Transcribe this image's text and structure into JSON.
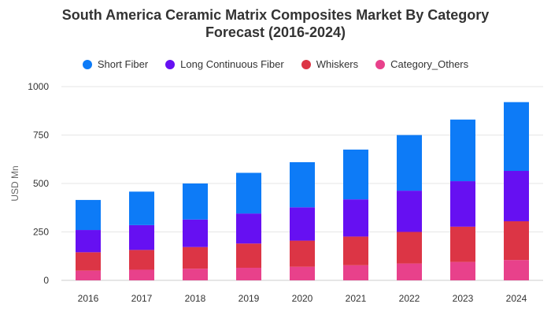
{
  "chart_data": {
    "type": "bar",
    "stacked": true,
    "title_line1": "South America Ceramic Matrix Composites Market By Category",
    "title_line2": "Forecast (2016-2024)",
    "xlabel": "",
    "ylabel": "USD Mn",
    "ylim": [
      0,
      1000
    ],
    "yticks": [
      0,
      250,
      500,
      750,
      1000
    ],
    "grid": true,
    "legend_position": "top",
    "categories": [
      "2016",
      "2017",
      "2018",
      "2019",
      "2020",
      "2021",
      "2022",
      "2023",
      "2024"
    ],
    "series": [
      {
        "name": "Category_Others",
        "color": "#e8418b",
        "values": [
          50,
          55,
          60,
          65,
          70,
          78,
          87,
          95,
          105
        ]
      },
      {
        "name": "Whiskers",
        "color": "#dc3545",
        "values": [
          95,
          102,
          112,
          125,
          135,
          148,
          163,
          182,
          200
        ]
      },
      {
        "name": "Long Continuous Fiber",
        "color": "#6610f2",
        "values": [
          115,
          128,
          142,
          155,
          172,
          192,
          213,
          235,
          260
        ]
      },
      {
        "name": "Short Fiber",
        "color": "#0d7bf7",
        "values": [
          155,
          173,
          186,
          210,
          233,
          257,
          287,
          318,
          355
        ]
      }
    ],
    "legend_order": [
      {
        "name": "Short Fiber",
        "color": "#0d7bf7"
      },
      {
        "name": "Long Continuous Fiber",
        "color": "#6610f2"
      },
      {
        "name": "Whiskers",
        "color": "#dc3545"
      },
      {
        "name": "Category_Others",
        "color": "#e8418b"
      }
    ]
  }
}
